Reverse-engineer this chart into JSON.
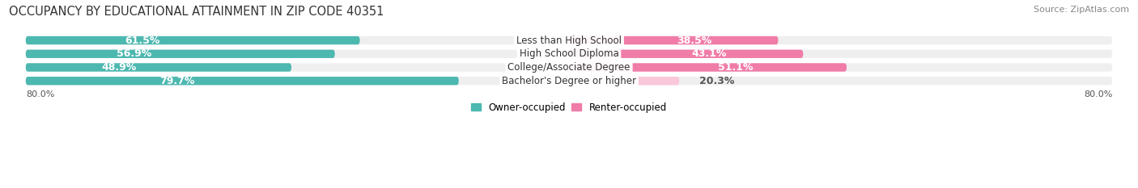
{
  "title": "OCCUPANCY BY EDUCATIONAL ATTAINMENT IN ZIP CODE 40351",
  "source": "Source: ZipAtlas.com",
  "categories": [
    "Less than High School",
    "High School Diploma",
    "College/Associate Degree",
    "Bachelor's Degree or higher"
  ],
  "owner_values": [
    61.5,
    56.9,
    48.9,
    79.7
  ],
  "renter_values": [
    38.5,
    43.1,
    51.1,
    20.3
  ],
  "owner_color": "#4db8b0",
  "renter_color": "#f07ca8",
  "renter_color_light": "#f9c8da",
  "background_color": "#ffffff",
  "row_bg_color": "#efefef",
  "label_fontsize": 9,
  "category_fontsize": 8.5,
  "title_fontsize": 10.5,
  "source_fontsize": 8,
  "legend_owner": "Owner-occupied",
  "legend_renter": "Renter-occupied",
  "axis_left_label": "80.0%",
  "axis_right_label": "80.0%"
}
